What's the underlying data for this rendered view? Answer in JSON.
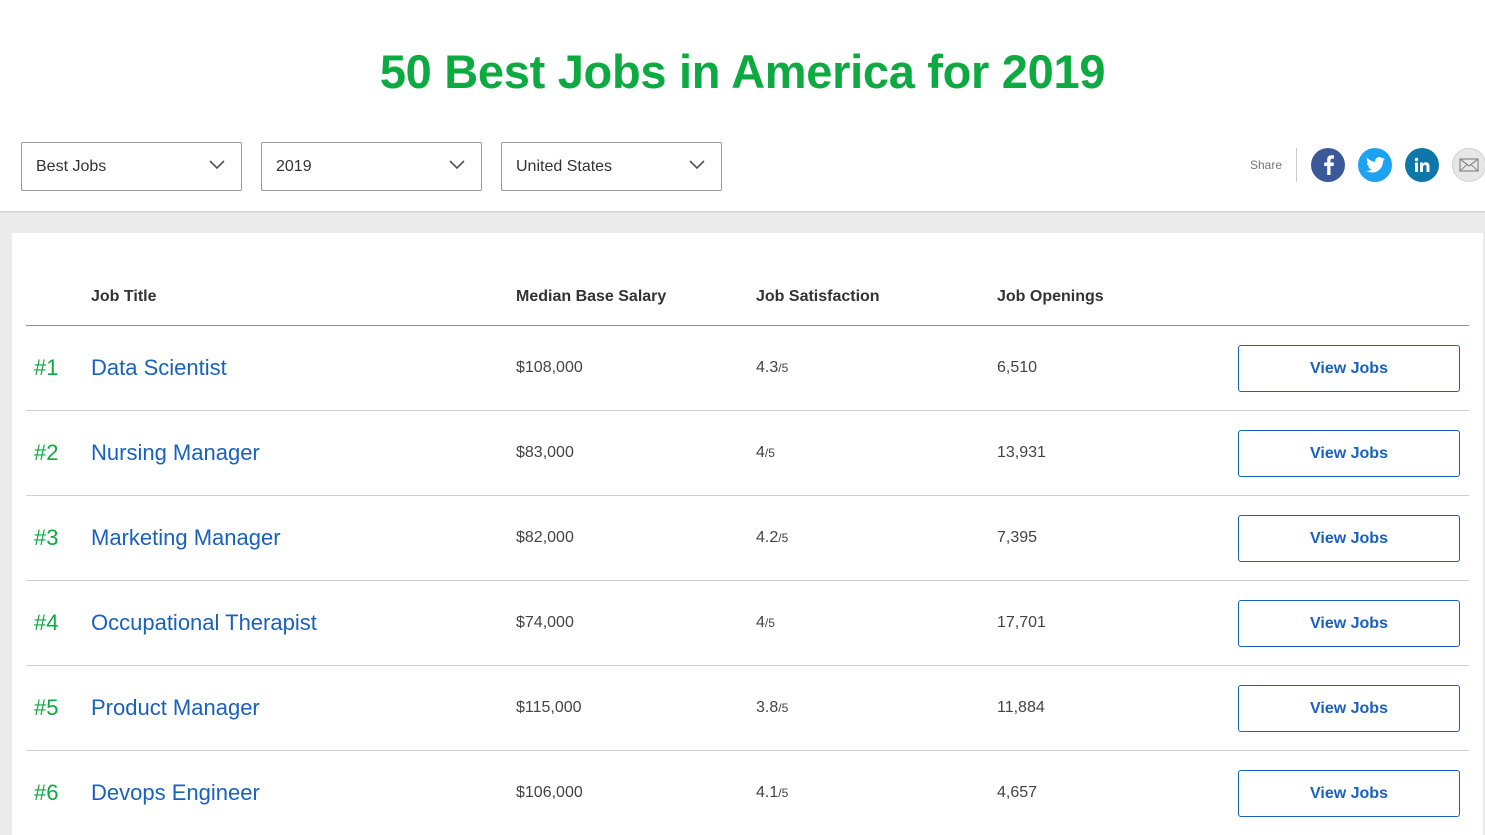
{
  "title": "50 Best Jobs in America for 2019",
  "filters": [
    {
      "value": "Best Jobs"
    },
    {
      "value": "2019"
    },
    {
      "value": "United States"
    }
  ],
  "share": {
    "label": "Share",
    "networks": [
      "facebook-icon",
      "twitter-icon",
      "linkedin-icon",
      "email-icon"
    ],
    "colors": {
      "facebook": "#3b5998",
      "twitter": "#1da1f2",
      "linkedin": "#0e76a8"
    }
  },
  "table": {
    "headers": {
      "job_title": "Job Title",
      "salary": "Median Base Salary",
      "satisfaction": "Job Satisfaction",
      "openings": "Job Openings"
    },
    "rows": [
      {
        "rank": "#1",
        "title": "Data Scientist",
        "salary": "$108,000",
        "satisfaction": "4.3",
        "satisfaction_max": "/5",
        "openings": "6,510",
        "button": "View Jobs"
      },
      {
        "rank": "#2",
        "title": "Nursing Manager",
        "salary": "$83,000",
        "satisfaction": "4",
        "satisfaction_max": "/5",
        "openings": "13,931",
        "button": "View Jobs"
      },
      {
        "rank": "#3",
        "title": "Marketing Manager",
        "salary": "$82,000",
        "satisfaction": "4.2",
        "satisfaction_max": "/5",
        "openings": "7,395",
        "button": "View Jobs"
      },
      {
        "rank": "#4",
        "title": "Occupational Therapist",
        "salary": "$74,000",
        "satisfaction": "4",
        "satisfaction_max": "/5",
        "openings": "17,701",
        "button": "View Jobs"
      },
      {
        "rank": "#5",
        "title": "Product Manager",
        "salary": "$115,000",
        "satisfaction": "3.8",
        "satisfaction_max": "/5",
        "openings": "11,884",
        "button": "View Jobs"
      },
      {
        "rank": "#6",
        "title": "Devops Engineer",
        "salary": "$106,000",
        "satisfaction": "4.1",
        "satisfaction_max": "/5",
        "openings": "4,657",
        "button": "View Jobs"
      }
    ]
  },
  "colors": {
    "accent_green": "#0caa41",
    "link_blue": "#1861bf"
  }
}
